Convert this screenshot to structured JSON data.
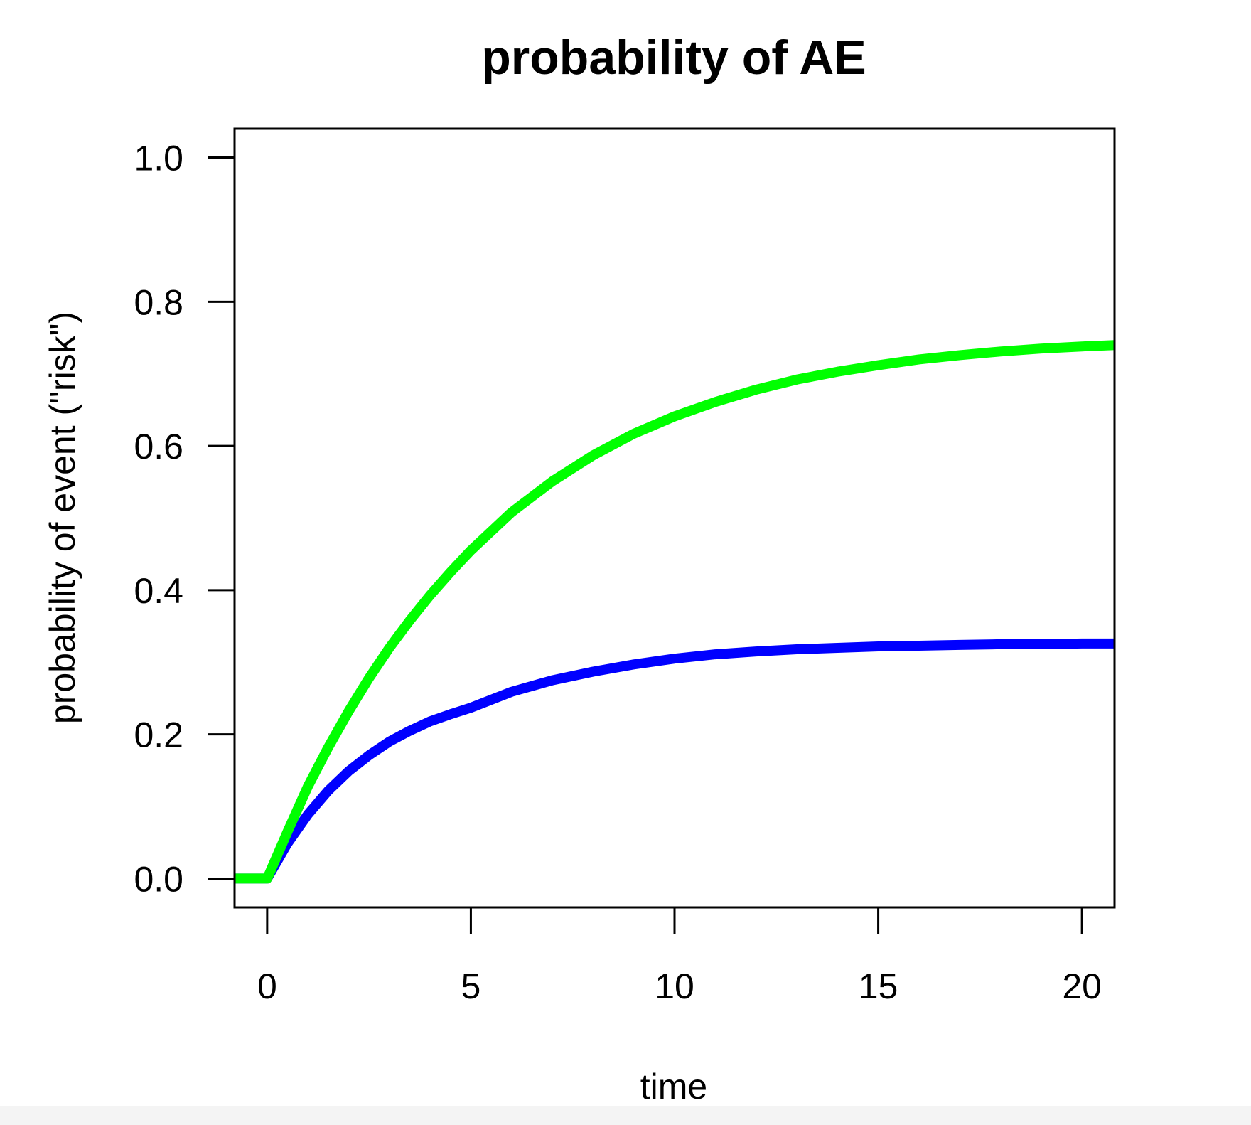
{
  "chart_data": {
    "type": "line",
    "title": "probability of AE",
    "xlabel": "time",
    "ylabel": "probability of event (\"risk\")",
    "xlim": [
      -0.8,
      20.8
    ],
    "ylim": [
      -0.04,
      1.04
    ],
    "xticks": [
      0,
      5,
      10,
      15,
      20
    ],
    "xtick_labels": [
      "0",
      "5",
      "10",
      "15",
      "20"
    ],
    "yticks": [
      0.0,
      0.2,
      0.4,
      0.6,
      0.8,
      1.0
    ],
    "ytick_labels": [
      "0.0",
      "0.2",
      "0.4",
      "0.6",
      "0.8",
      "1.0"
    ],
    "grid": false,
    "legend": "none",
    "series": [
      {
        "color": "#0000ff",
        "x": [
          -0.8,
          0,
          0.5,
          1,
          1.5,
          2,
          2.5,
          3,
          3.5,
          4,
          4.5,
          5,
          6,
          7,
          8,
          9,
          10,
          11,
          12,
          13,
          14,
          15,
          16,
          17,
          18,
          19,
          20,
          20.8
        ],
        "values": [
          0.0,
          0.0,
          0.049,
          0.089,
          0.122,
          0.149,
          0.171,
          0.19,
          0.205,
          0.218,
          0.228,
          0.237,
          0.259,
          0.275,
          0.287,
          0.297,
          0.305,
          0.311,
          0.315,
          0.318,
          0.32,
          0.322,
          0.323,
          0.324,
          0.325,
          0.325,
          0.326,
          0.326
        ]
      },
      {
        "color": "#00ff00",
        "x": [
          -0.8,
          0,
          0.5,
          1,
          1.5,
          2,
          2.5,
          3,
          3.5,
          4,
          4.5,
          5,
          6,
          7,
          8,
          9,
          10,
          11,
          12,
          13,
          14,
          15,
          16,
          17,
          18,
          19,
          20,
          20.8
        ],
        "values": [
          0.0,
          0.0,
          0.065,
          0.128,
          0.182,
          0.232,
          0.278,
          0.32,
          0.358,
          0.393,
          0.425,
          0.455,
          0.508,
          0.551,
          0.587,
          0.617,
          0.641,
          0.661,
          0.678,
          0.692,
          0.703,
          0.712,
          0.72,
          0.726,
          0.731,
          0.735,
          0.738,
          0.74
        ]
      }
    ]
  }
}
